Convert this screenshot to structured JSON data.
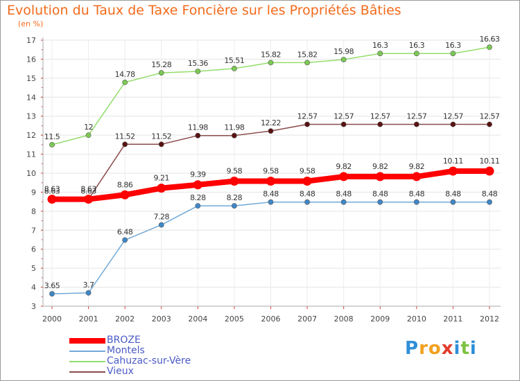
{
  "title": "Evolution du Taux de Taxe Foncière sur les Propriétés Bâties",
  "subtitle": "(en %)",
  "logo": {
    "letters": [
      "P",
      "r",
      "o",
      "x",
      "i",
      "t",
      "i"
    ],
    "colors": [
      "#2f8fd8",
      "#f2a11f",
      "#f2a11f",
      "#e33b2e",
      "#2f8fd8",
      "#7cc242",
      "#2f8fd8"
    ]
  },
  "chart_data": {
    "type": "line",
    "title": "Evolution du Taux de Taxe Foncière sur les Propriétés Bâties",
    "ylabel": "(en %)",
    "x": [
      "2000",
      "2001",
      "2002",
      "2003",
      "2004",
      "2005",
      "2006",
      "2007",
      "2008",
      "2009",
      "2010",
      "2011",
      "2012"
    ],
    "ylim": [
      3,
      17
    ],
    "yticks": [
      "3",
      "4",
      "5",
      "6",
      "7",
      "8",
      "9",
      "10",
      "11",
      "12",
      "13",
      "14",
      "15",
      "16",
      "17"
    ],
    "grid": true,
    "legend_position": "bottom-left",
    "series": [
      {
        "name": "Cahuzac-sur-Vère",
        "color": "#93dd6b",
        "marker_color": "#7bc954",
        "values": [
          11.5,
          12,
          14.78,
          15.28,
          15.36,
          15.51,
          15.82,
          15.82,
          15.98,
          16.3,
          16.3,
          16.3,
          16.63
        ],
        "labels": [
          "11.5",
          "12",
          "14.78",
          "15.28",
          "15.36",
          "15.51",
          "15.82",
          "15.82",
          "15.98",
          "16.3",
          "16.3",
          "16.3",
          "16.63"
        ]
      },
      {
        "name": "Vieux",
        "color": "#8a4a4a",
        "marker_color": "#5a1212",
        "values": [
          8.63,
          8.63,
          11.52,
          11.52,
          11.98,
          11.98,
          12.22,
          12.57,
          12.57,
          12.57,
          12.57,
          12.57,
          12.57
        ],
        "labels": [
          "8.63",
          "8.63",
          "11.52",
          "11.52",
          "11.98",
          "11.98",
          "12.22",
          "12.57",
          "12.57",
          "12.57",
          "12.57",
          "12.57",
          "12.57"
        ]
      },
      {
        "name": "Montels",
        "color": "#72a9d6",
        "marker_color": "#3f87c8",
        "values": [
          3.65,
          3.7,
          6.48,
          7.28,
          8.28,
          8.28,
          8.48,
          8.48,
          8.48,
          8.48,
          8.48,
          8.48,
          8.48
        ],
        "labels": [
          "3.65",
          "3.7",
          "6.48",
          "7.28",
          "8.28",
          "8.28",
          "8.48",
          "8.48",
          "8.48",
          "8.48",
          "8.48",
          "8.48",
          "8.48"
        ]
      },
      {
        "name": "BROZE",
        "color": "#ff0000",
        "marker_color": "#ff0000",
        "values": [
          8.63,
          8.63,
          8.86,
          9.21,
          9.39,
          9.58,
          9.58,
          9.58,
          9.82,
          9.82,
          9.82,
          10.11,
          10.11
        ],
        "labels": [
          "8.63",
          "8.63",
          "8.86",
          "9.21",
          "9.39",
          "9.58",
          "9.58",
          "9.58",
          "9.82",
          "9.82",
          "9.82",
          "10.11",
          "10.11"
        ]
      }
    ],
    "legend": [
      "BROZE",
      "Montels",
      "Cahuzac-sur-Vère",
      "Vieux"
    ]
  }
}
